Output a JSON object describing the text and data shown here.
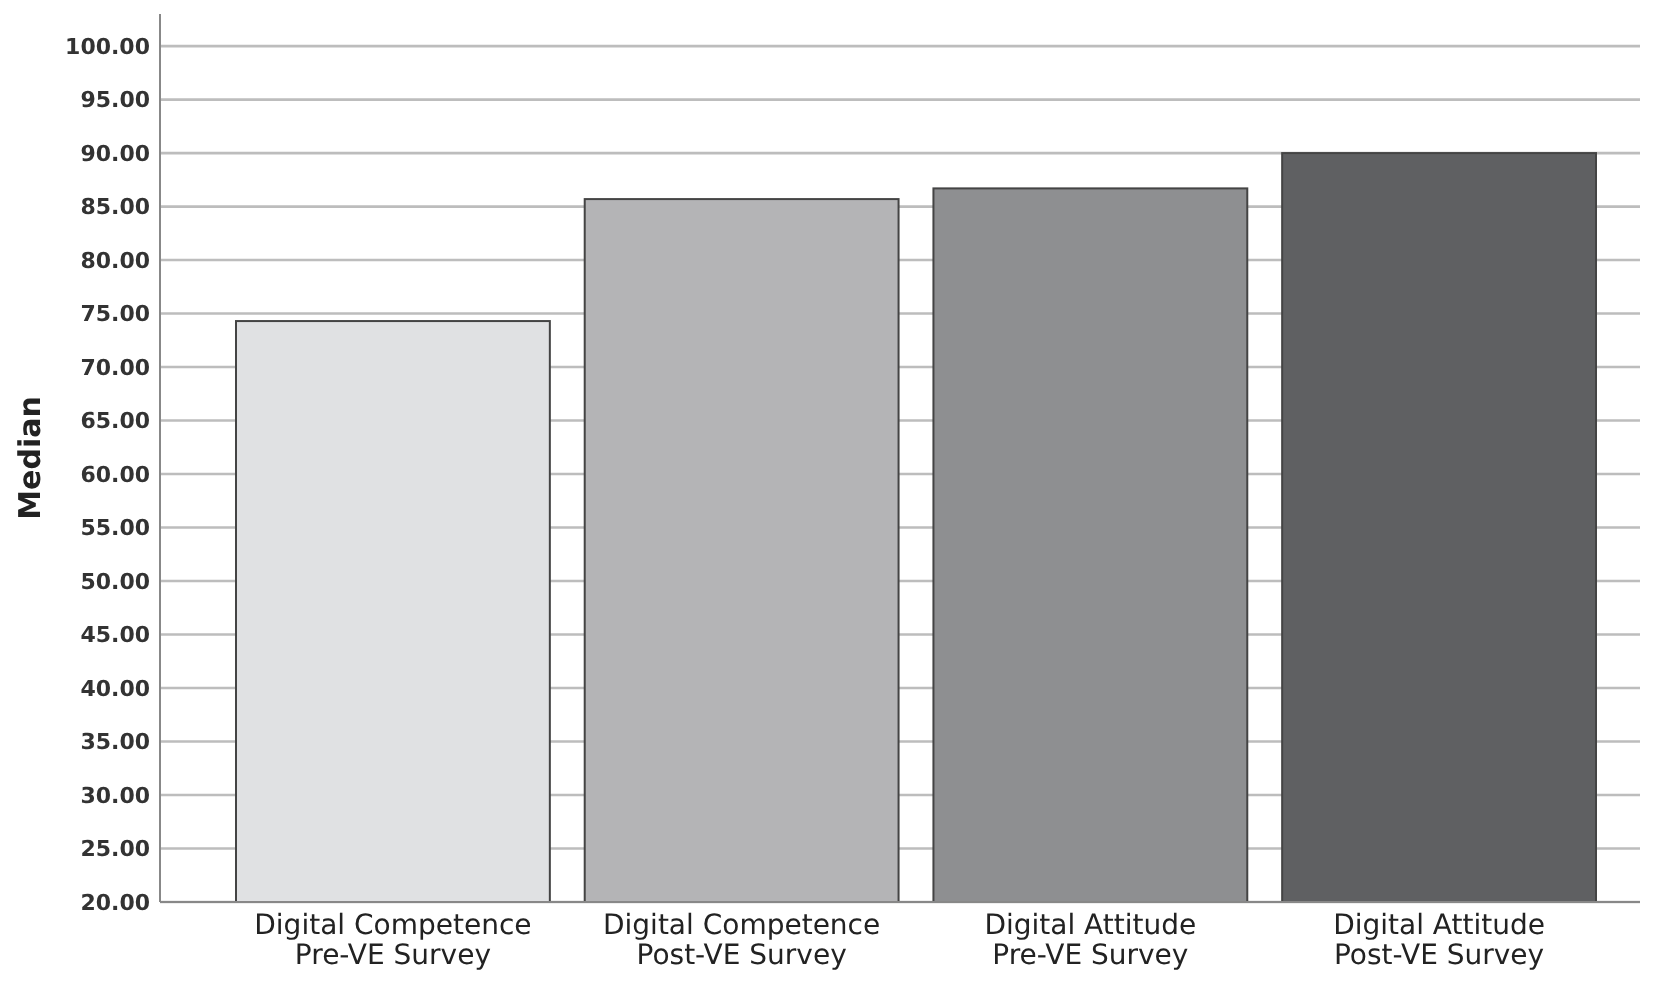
{
  "chart_data": {
    "type": "bar",
    "ylabel": "Median",
    "categories": [
      "Digital Competence\nPre-VE Survey",
      "Digital Competence\nPost-VE Survey",
      "Digital Attitude\nPre-VE Survey",
      "Digital Attitude\nPost-VE Survey"
    ],
    "values": [
      74.3,
      85.7,
      86.7,
      90.0
    ],
    "colors": [
      "#e0e1e3",
      "#b4b4b6",
      "#8e8f91",
      "#5f6062"
    ],
    "ylim": [
      20,
      103
    ],
    "yticks": [
      {
        "value": 20,
        "label": "20.00"
      },
      {
        "value": 25,
        "label": "25.00"
      },
      {
        "value": 30,
        "label": "30.00"
      },
      {
        "value": 35,
        "label": "35.00"
      },
      {
        "value": 40,
        "label": "40.00"
      },
      {
        "value": 45,
        "label": "45.00"
      },
      {
        "value": 50,
        "label": "50.00"
      },
      {
        "value": 55,
        "label": "55.00"
      },
      {
        "value": 60,
        "label": "60.00"
      },
      {
        "value": 65,
        "label": "65.00"
      },
      {
        "value": 70,
        "label": "70.00"
      },
      {
        "value": 75,
        "label": "75.00"
      },
      {
        "value": 80,
        "label": "80.00"
      },
      {
        "value": 85,
        "label": "85.00"
      },
      {
        "value": 90,
        "label": "90.00"
      },
      {
        "value": 95,
        "label": "95.00"
      },
      {
        "value": 100,
        "label": "100.00"
      }
    ],
    "grid": "y"
  }
}
